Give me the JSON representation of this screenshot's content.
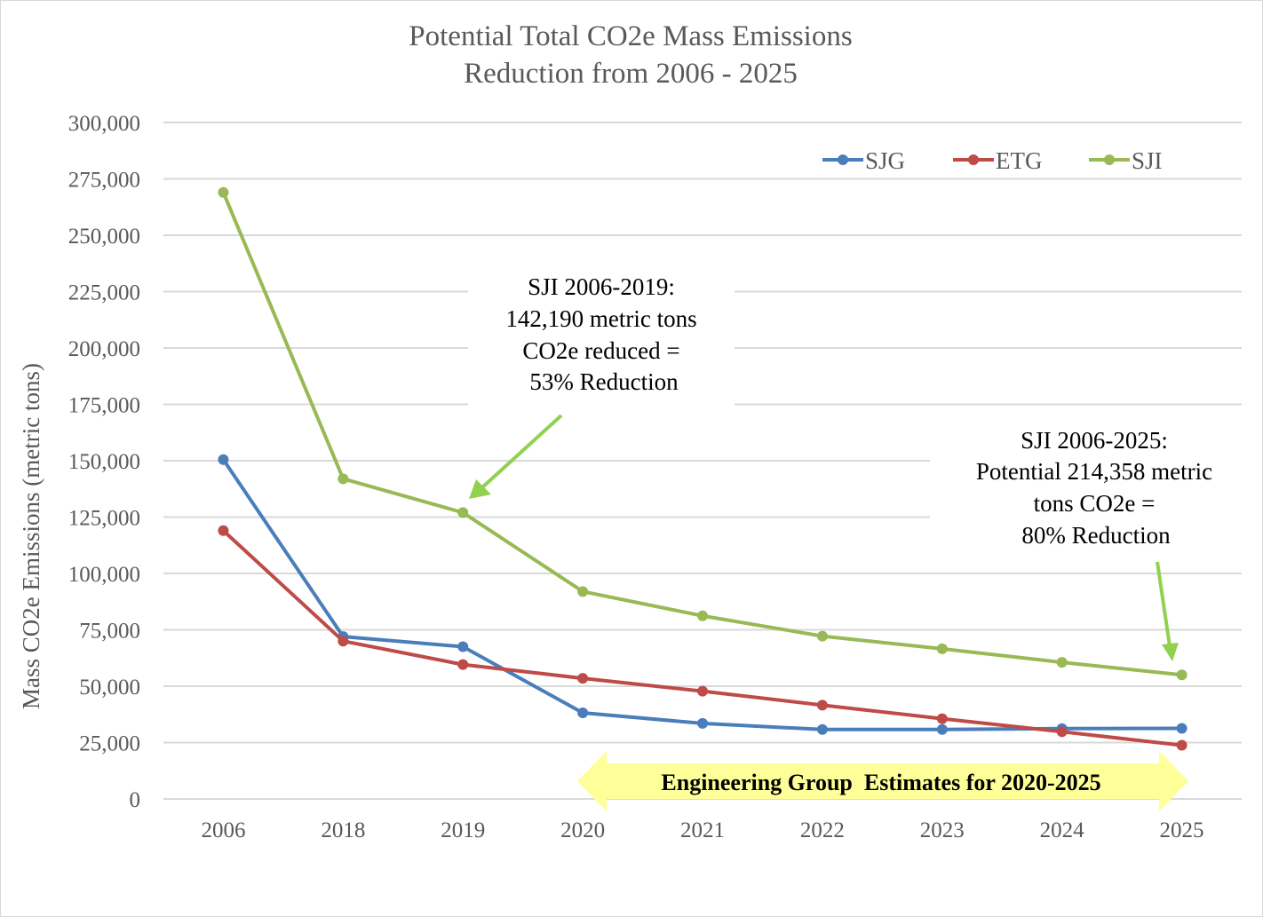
{
  "chart_data": {
    "type": "line",
    "title": [
      "Potential Total CO2e Mass Emissions",
      "Reduction from 2006 - 2025"
    ],
    "ylabel": "Mass CO2e Emissions (metric tons)",
    "xlabel": "",
    "categories": [
      "2006",
      "2018",
      "2019",
      "2020",
      "2021",
      "2022",
      "2023",
      "2024",
      "2025"
    ],
    "ylim": [
      0,
      300000
    ],
    "yticks": [
      0,
      25000,
      50000,
      75000,
      100000,
      125000,
      150000,
      175000,
      200000,
      225000,
      250000,
      275000,
      300000
    ],
    "ytick_labels": [
      "0",
      "25,000",
      "50,000",
      "75,000",
      "100,000",
      "125,000",
      "150,000",
      "175,000",
      "200,000",
      "225,000",
      "250,000",
      "275,000",
      "300,000"
    ],
    "grid": true,
    "legend_position": "top-right",
    "series": [
      {
        "name": "SJG",
        "color": "#4a7ebb",
        "values": [
          150500,
          72000,
          67500,
          38200,
          33500,
          30800,
          30800,
          31200,
          31300
        ]
      },
      {
        "name": "ETG",
        "color": "#be4b48",
        "values": [
          119000,
          70000,
          59600,
          53500,
          47800,
          41600,
          35600,
          29800,
          23800
        ]
      },
      {
        "name": "SJI",
        "color": "#98b954",
        "values": [
          269000,
          142000,
          127000,
          92000,
          81200,
          72200,
          66600,
          60600,
          55000
        ]
      }
    ],
    "annotations": [
      {
        "lines": [
          "SJI 2006-2019:",
          "142,190 metric tons",
          "CO2e reduced =",
          "53% Reduction"
        ],
        "arrow_color": "#92d050"
      },
      {
        "lines": [
          "SJI 2006-2025:",
          "Potential 214,358 metric",
          "tons CO2e =",
          "80% Reduction"
        ],
        "arrow_color": "#92d050"
      }
    ],
    "banner": {
      "text": "Engineering Group  Estimates for 2020-2025",
      "color": "#ffff99"
    }
  }
}
